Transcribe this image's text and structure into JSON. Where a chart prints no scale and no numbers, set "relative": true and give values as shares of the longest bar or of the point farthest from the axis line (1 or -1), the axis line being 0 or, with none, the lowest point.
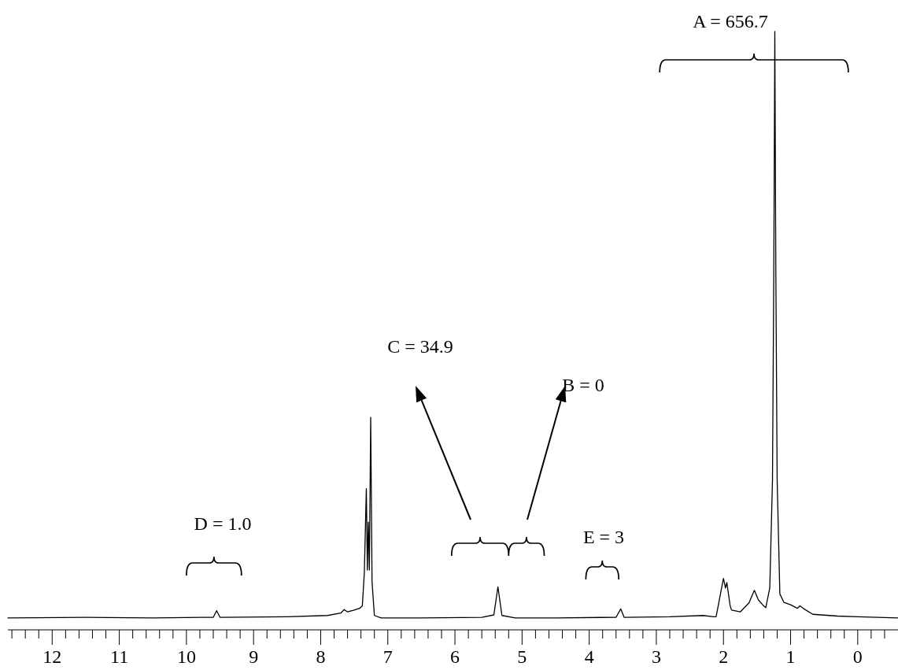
{
  "chart_data": {
    "type": "line",
    "relative": true,
    "x": [
      12.66,
      11.5,
      10.5,
      9.6,
      9.55,
      9.5,
      8.5,
      7.9,
      7.7,
      7.65,
      7.6,
      7.5,
      7.42,
      7.38,
      7.35,
      7.32,
      7.305,
      7.29,
      7.275,
      7.255,
      7.235,
      7.2,
      7.1,
      6.5,
      5.6,
      5.42,
      5.36,
      5.3,
      5.1,
      4.5,
      3.6,
      3.53,
      3.48,
      2.8,
      2.3,
      2.15,
      2.11,
      2.07,
      2.05,
      2.0,
      1.97,
      1.95,
      1.9,
      1.88,
      1.75,
      1.62,
      1.54,
      1.48,
      1.4,
      1.37,
      1.31,
      1.27,
      1.25,
      1.235,
      1.22,
      1.2,
      1.16,
      1.1,
      1.0,
      0.9,
      0.86,
      0.8,
      0.67,
      0.3,
      0,
      -0.6
    ],
    "series": [
      {
        "color": "#000000",
        "values": [
          0.02,
          0.021,
          0.02,
          0.021,
          0.032,
          0.021,
          0.022,
          0.024,
          0.028,
          0.034,
          0.03,
          0.033,
          0.036,
          0.04,
          0.095,
          0.236,
          0.1,
          0.18,
          0.1,
          0.355,
          0.08,
          0.024,
          0.02,
          0.02,
          0.021,
          0.025,
          0.072,
          0.024,
          0.02,
          0.02,
          0.021,
          0.035,
          0.021,
          0.022,
          0.024,
          0.022,
          0.022,
          0.045,
          0.057,
          0.086,
          0.07,
          0.079,
          0.04,
          0.033,
          0.03,
          0.045,
          0.066,
          0.05,
          0.04,
          0.037,
          0.07,
          0.25,
          0.6,
          1.0,
          0.6,
          0.25,
          0.06,
          0.046,
          0.042,
          0.036,
          0.04,
          0.035,
          0.026,
          0.023,
          0.022,
          0.02
        ]
      }
    ],
    "xlim": [
      12.66,
      -0.6
    ],
    "xticks": [
      12,
      11,
      10,
      9,
      8,
      7,
      6,
      5,
      4,
      3,
      2,
      1,
      0,
      {
        "value": 12.6,
        "label": null
      },
      {
        "value": 12.4,
        "label": null
      },
      {
        "value": 12.2,
        "label": null
      },
      {
        "value": 11.8,
        "label": null
      },
      {
        "value": 11.6,
        "label": null
      },
      {
        "value": 11.4,
        "label": null
      },
      {
        "value": 11.2,
        "label": null
      },
      {
        "value": 10.8,
        "label": null
      },
      {
        "value": 10.6,
        "label": null
      },
      {
        "value": 10.4,
        "label": null
      },
      {
        "value": 10.2,
        "label": null
      },
      {
        "value": 9.8,
        "label": null
      },
      {
        "value": 9.6,
        "label": null
      },
      {
        "value": 9.4,
        "label": null
      },
      {
        "value": 9.2,
        "label": null
      },
      {
        "value": 8.8,
        "label": null
      },
      {
        "value": 8.6,
        "label": null
      },
      {
        "value": 8.4,
        "label": null
      },
      {
        "value": 8.2,
        "label": null
      },
      {
        "value": 7.8,
        "label": null
      },
      {
        "value": 7.6,
        "label": null
      },
      {
        "value": 7.4,
        "label": null
      },
      {
        "value": 7.2,
        "label": null
      },
      {
        "value": 6.8,
        "label": null
      },
      {
        "value": 6.6,
        "label": null
      },
      {
        "value": 6.4,
        "label": null
      },
      {
        "value": 6.2,
        "label": null
      },
      {
        "value": 5.8,
        "label": null
      },
      {
        "value": 5.6,
        "label": null
      },
      {
        "value": 5.4,
        "label": null
      },
      {
        "value": 5.2,
        "label": null
      },
      {
        "value": 4.8,
        "label": null
      },
      {
        "value": 4.6,
        "label": null
      },
      {
        "value": 4.4,
        "label": null
      },
      {
        "value": 4.2,
        "label": null
      },
      {
        "value": 3.8,
        "label": null
      },
      {
        "value": 3.6,
        "label": null
      },
      {
        "value": 3.4,
        "label": null
      },
      {
        "value": 3.2,
        "label": null
      },
      {
        "value": 2.8,
        "label": null
      },
      {
        "value": 2.6,
        "label": null
      },
      {
        "value": 2.4,
        "label": null
      },
      {
        "value": 2.2,
        "label": null
      },
      {
        "value": 1.8,
        "label": null
      },
      {
        "value": 1.6,
        "label": null
      },
      {
        "value": 1.4,
        "label": null
      },
      {
        "value": 1.2,
        "label": null
      },
      {
        "value": 0.8,
        "label": null
      },
      {
        "value": 0.6,
        "label": null
      },
      {
        "value": 0.4,
        "label": null
      },
      {
        "value": 0.2,
        "label": null
      },
      {
        "value": -0.2,
        "label": null
      },
      {
        "value": -0.4,
        "label": null
      }
    ],
    "annotations": [
      "A = 656.7",
      "C = 34.9",
      "B = 0",
      "D = 1.0",
      "E = 3"
    ]
  }
}
